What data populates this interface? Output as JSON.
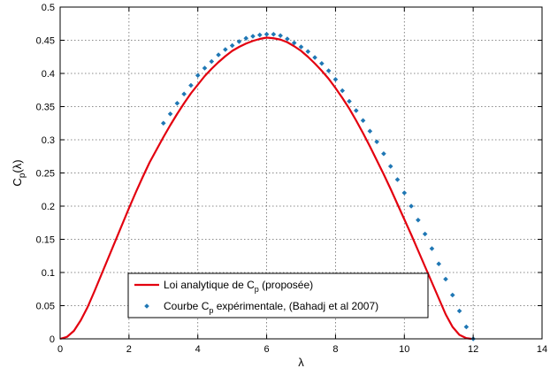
{
  "chart_data": {
    "type": "line",
    "title": "",
    "xlabel": "λ",
    "ylabel": "C_p(λ)",
    "xlim": [
      0,
      14
    ],
    "ylim": [
      0,
      0.5
    ],
    "xticks": [
      "0",
      "2",
      "4",
      "6",
      "8",
      "10",
      "12",
      "14"
    ],
    "yticks": [
      "0",
      "0.05",
      "0.1",
      "0.15",
      "0.2",
      "0.25",
      "0.3",
      "0.35",
      "0.4",
      "0.45",
      "0.5"
    ],
    "grid": true,
    "legend_position": "bottom-center",
    "series": [
      {
        "name": "Loi analytique de Cp (proposée)",
        "legend_main": "Loi analytique de C",
        "legend_sub": "p",
        "legend_rest": " (proposée)",
        "style": "line",
        "color": "#e3000f",
        "points": [
          [
            0,
            0
          ],
          [
            0.2,
            0.003
          ],
          [
            0.4,
            0.012
          ],
          [
            0.6,
            0.028
          ],
          [
            0.8,
            0.048
          ],
          [
            1.0,
            0.072
          ],
          [
            1.2,
            0.097
          ],
          [
            1.4,
            0.122
          ],
          [
            1.6,
            0.147
          ],
          [
            1.8,
            0.172
          ],
          [
            2.0,
            0.197
          ],
          [
            2.2,
            0.221
          ],
          [
            2.4,
            0.244
          ],
          [
            2.6,
            0.266
          ],
          [
            2.8,
            0.285
          ],
          [
            3.0,
            0.304
          ],
          [
            3.2,
            0.322
          ],
          [
            3.4,
            0.339
          ],
          [
            3.6,
            0.355
          ],
          [
            3.8,
            0.37
          ],
          [
            4.0,
            0.383
          ],
          [
            4.2,
            0.396
          ],
          [
            4.4,
            0.407
          ],
          [
            4.6,
            0.417
          ],
          [
            4.8,
            0.426
          ],
          [
            5.0,
            0.434
          ],
          [
            5.2,
            0.44
          ],
          [
            5.4,
            0.445
          ],
          [
            5.6,
            0.449
          ],
          [
            5.8,
            0.452
          ],
          [
            6.0,
            0.454
          ],
          [
            6.2,
            0.453
          ],
          [
            6.4,
            0.451
          ],
          [
            6.6,
            0.447
          ],
          [
            6.8,
            0.441
          ],
          [
            7.0,
            0.434
          ],
          [
            7.2,
            0.425
          ],
          [
            7.4,
            0.415
          ],
          [
            7.6,
            0.404
          ],
          [
            7.8,
            0.392
          ],
          [
            8.0,
            0.378
          ],
          [
            8.2,
            0.363
          ],
          [
            8.4,
            0.347
          ],
          [
            8.6,
            0.329
          ],
          [
            8.8,
            0.31
          ],
          [
            9.0,
            0.29
          ],
          [
            9.2,
            0.269
          ],
          [
            9.4,
            0.248
          ],
          [
            9.6,
            0.226
          ],
          [
            9.8,
            0.203
          ],
          [
            10.0,
            0.18
          ],
          [
            10.2,
            0.157
          ],
          [
            10.4,
            0.133
          ],
          [
            10.6,
            0.109
          ],
          [
            10.8,
            0.085
          ],
          [
            11.0,
            0.061
          ],
          [
            11.2,
            0.037
          ],
          [
            11.4,
            0.018
          ],
          [
            11.6,
            0.006
          ],
          [
            11.8,
            0.001
          ],
          [
            11.95,
            0
          ]
        ]
      },
      {
        "name": "Courbe Cp expérimentale, (Bahadj et al 2007)",
        "legend_main": "Courbe C",
        "legend_sub": "p",
        "legend_rest": " expérimentale, (Bahadj et al 2007)",
        "style": "marker",
        "color": "#1f77b4",
        "points": [
          [
            3.0,
            0.325
          ],
          [
            3.2,
            0.339
          ],
          [
            3.4,
            0.355
          ],
          [
            3.6,
            0.369
          ],
          [
            3.8,
            0.382
          ],
          [
            4.0,
            0.397
          ],
          [
            4.2,
            0.408
          ],
          [
            4.4,
            0.418
          ],
          [
            4.6,
            0.428
          ],
          [
            4.8,
            0.436
          ],
          [
            5.0,
            0.442
          ],
          [
            5.2,
            0.448
          ],
          [
            5.4,
            0.453
          ],
          [
            5.6,
            0.456
          ],
          [
            5.8,
            0.458
          ],
          [
            6.0,
            0.459
          ],
          [
            6.2,
            0.459
          ],
          [
            6.4,
            0.457
          ],
          [
            6.6,
            0.452
          ],
          [
            6.8,
            0.446
          ],
          [
            7.0,
            0.44
          ],
          [
            7.2,
            0.433
          ],
          [
            7.4,
            0.424
          ],
          [
            7.6,
            0.415
          ],
          [
            7.8,
            0.404
          ],
          [
            8.0,
            0.391
          ],
          [
            8.2,
            0.374
          ],
          [
            8.4,
            0.358
          ],
          [
            8.6,
            0.344
          ],
          [
            8.8,
            0.329
          ],
          [
            9.0,
            0.313
          ],
          [
            9.2,
            0.297
          ],
          [
            9.4,
            0.279
          ],
          [
            9.6,
            0.26
          ],
          [
            9.8,
            0.24
          ],
          [
            10.0,
            0.22
          ],
          [
            10.2,
            0.2
          ],
          [
            10.4,
            0.179
          ],
          [
            10.6,
            0.158
          ],
          [
            10.8,
            0.136
          ],
          [
            11.0,
            0.113
          ],
          [
            11.2,
            0.09
          ],
          [
            11.4,
            0.066
          ],
          [
            11.6,
            0.042
          ],
          [
            11.8,
            0.018
          ],
          [
            12.0,
            0.0
          ]
        ]
      }
    ]
  }
}
